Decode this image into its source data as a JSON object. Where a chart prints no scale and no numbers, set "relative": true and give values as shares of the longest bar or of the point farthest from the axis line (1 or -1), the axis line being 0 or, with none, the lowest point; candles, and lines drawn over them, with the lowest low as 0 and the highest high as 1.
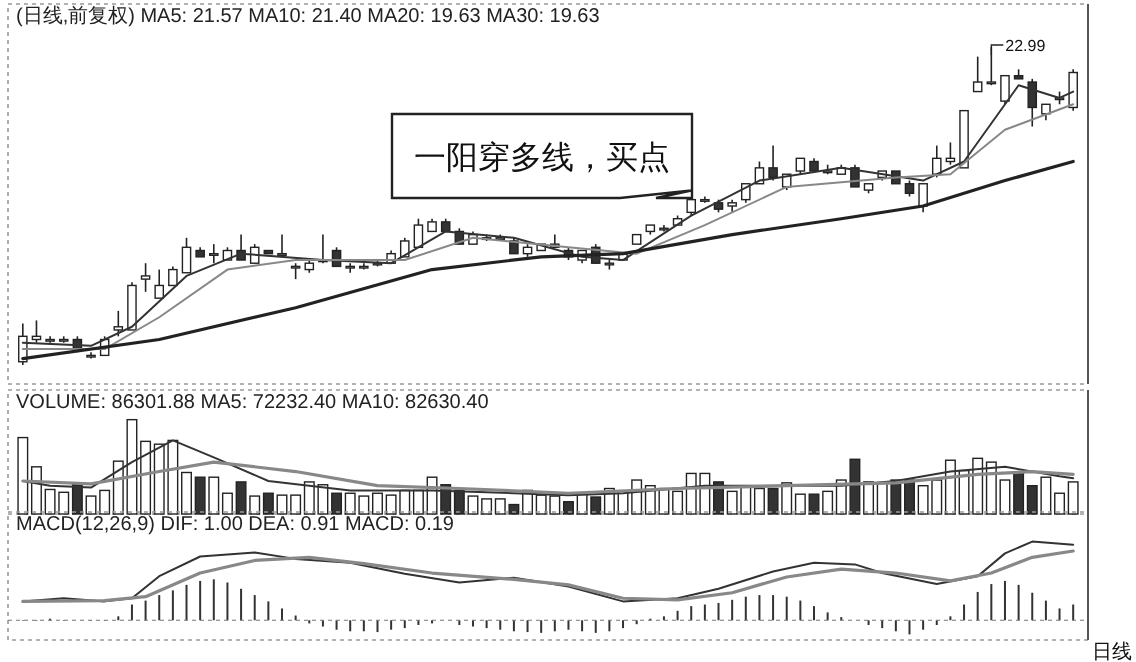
{
  "chart_data": [
    {
      "type": "candlestick",
      "relative": true,
      "title": "(日线,前复权) MA5: 21.57 MA10: 21.40 MA20: 19.63 MA30: 19.63",
      "categories": [
        null,
        null,
        null,
        null,
        null,
        null,
        null,
        null,
        null,
        null,
        null,
        null,
        null,
        null,
        null,
        null,
        null,
        null,
        null,
        null,
        null,
        null,
        null,
        null,
        null,
        null,
        null,
        null,
        null,
        null,
        null,
        null,
        null,
        null,
        null,
        null,
        null,
        null,
        null,
        null,
        null,
        null,
        null,
        null,
        null,
        null,
        null,
        null,
        null,
        null,
        null,
        null,
        null,
        null,
        null,
        null,
        null,
        null,
        null,
        null,
        null,
        null,
        null,
        null,
        null,
        null,
        null,
        null,
        null,
        null,
        null,
        null,
        null,
        null,
        null,
        null,
        null,
        null
      ],
      "ohlc": [
        [
          0.01,
          0.13,
          0,
          0.09
        ],
        [
          0.08,
          0.14,
          0.07,
          0.09
        ],
        [
          0.08,
          0.09,
          0.07,
          0.08
        ],
        [
          0.08,
          0.09,
          0.07,
          0.08
        ],
        [
          0.08,
          0.09,
          0.04,
          0.05
        ],
        [
          0.03,
          0.04,
          0.02,
          0.03
        ],
        [
          0.03,
          0.09,
          0.03,
          0.08
        ],
        [
          0.11,
          0.17,
          0.09,
          0.12
        ],
        [
          0.11,
          0.26,
          0.11,
          0.25
        ],
        [
          0.27,
          0.32,
          0.23,
          0.28
        ],
        [
          0.21,
          0.3,
          0.21,
          0.25
        ],
        [
          0.25,
          0.31,
          0.25,
          0.3
        ],
        [
          0.29,
          0.4,
          0.29,
          0.37
        ],
        [
          0.36,
          0.37,
          0.34,
          0.34
        ],
        [
          0.35,
          0.38,
          0.32,
          0.35
        ],
        [
          0.33,
          0.37,
          0.33,
          0.36
        ],
        [
          0.36,
          0.41,
          0.33,
          0.33
        ],
        [
          0.32,
          0.38,
          0.32,
          0.37
        ],
        [
          0.36,
          0.36,
          0.35,
          0.35
        ],
        [
          0.35,
          0.41,
          0.34,
          0.35
        ],
        [
          0.31,
          0.32,
          0.27,
          0.31
        ],
        [
          0.3,
          0.33,
          0.29,
          0.32
        ],
        [
          0.33,
          0.41,
          0.32,
          0.33
        ],
        [
          0.36,
          0.37,
          0.31,
          0.31
        ],
        [
          0.31,
          0.32,
          0.29,
          0.31
        ],
        [
          0.31,
          0.32,
          0.3,
          0.31
        ],
        [
          0.32,
          0.33,
          0.31,
          0.32
        ],
        [
          0.32,
          0.36,
          0.32,
          0.35
        ],
        [
          0.34,
          0.4,
          0.34,
          0.39
        ],
        [
          0.37,
          0.46,
          0.37,
          0.44
        ],
        [
          0.42,
          0.46,
          0.42,
          0.45
        ],
        [
          0.45,
          0.46,
          0.42,
          0.42
        ],
        [
          0.42,
          0.43,
          0.38,
          0.38
        ],
        [
          0.38,
          0.42,
          0.38,
          0.41
        ],
        [
          0.4,
          0.41,
          0.39,
          0.4
        ],
        [
          0.4,
          0.41,
          0.39,
          0.4
        ],
        [
          0.39,
          0.4,
          0.35,
          0.35
        ],
        [
          0.35,
          0.38,
          0.34,
          0.37
        ],
        [
          0.36,
          0.38,
          0.36,
          0.38
        ],
        [
          0.37,
          0.41,
          0.37,
          0.38
        ],
        [
          0.36,
          0.37,
          0.33,
          0.34
        ],
        [
          0.33,
          0.36,
          0.32,
          0.36
        ],
        [
          0.37,
          0.38,
          0.32,
          0.32
        ],
        [
          0.32,
          0.33,
          0.3,
          0.32
        ],
        [
          0.33,
          0.35,
          0.33,
          0.35
        ],
        [
          0.38,
          0.41,
          0.38,
          0.41
        ],
        [
          0.42,
          0.44,
          0.41,
          0.44
        ],
        [
          0.43,
          0.44,
          0.42,
          0.43
        ],
        [
          0.44,
          0.47,
          0.44,
          0.46
        ],
        [
          0.48,
          0.53,
          0.47,
          0.52
        ],
        [
          0.52,
          0.53,
          0.51,
          0.52
        ],
        [
          0.51,
          0.52,
          0.48,
          0.49
        ],
        [
          0.5,
          0.52,
          0.48,
          0.51
        ],
        [
          0.52,
          0.57,
          0.51,
          0.57
        ],
        [
          0.57,
          0.64,
          0.57,
          0.62
        ],
        [
          0.62,
          0.69,
          0.58,
          0.59
        ],
        [
          0.56,
          0.6,
          0.55,
          0.6
        ],
        [
          0.61,
          0.65,
          0.6,
          0.65
        ],
        [
          0.64,
          0.65,
          0.61,
          0.61
        ],
        [
          0.61,
          0.63,
          0.6,
          0.61
        ],
        [
          0.6,
          0.63,
          0.6,
          0.62
        ],
        [
          0.62,
          0.63,
          0.56,
          0.56
        ],
        [
          0.55,
          0.57,
          0.54,
          0.57
        ],
        [
          0.59,
          0.61,
          0.58,
          0.61
        ],
        [
          0.61,
          0.61,
          0.57,
          0.57
        ],
        [
          0.57,
          0.58,
          0.53,
          0.54
        ],
        [
          0.5,
          0.57,
          0.48,
          0.57
        ],
        [
          0.6,
          0.69,
          0.59,
          0.65
        ],
        [
          0.64,
          0.7,
          0.63,
          0.65
        ],
        [
          0.62,
          0.8,
          0.62,
          0.8
        ],
        [
          0.86,
          0.97,
          0.86,
          0.89
        ],
        [
          0.89,
          1,
          0.88,
          0.89
        ],
        [
          0.83,
          0.91,
          0.82,
          0.91
        ],
        [
          0.91,
          0.93,
          0.9,
          0.9
        ],
        [
          0.89,
          0.9,
          0.75,
          0.81
        ],
        [
          0.79,
          0.82,
          0.77,
          0.82
        ],
        [
          0.84,
          0.86,
          0.82,
          0.84
        ],
        [
          0.81,
          0.93,
          0.8,
          0.92
        ]
      ],
      "series": [
        {
          "type": "line",
          "color": "#333333",
          "values": [
            0.07,
            null,
            null,
            null,
            null,
            0.06,
            null,
            null,
            0.12,
            null,
            null,
            null,
            0.28,
            null,
            null,
            null,
            0.35,
            null,
            null,
            null,
            null,
            null,
            0.33,
            null,
            null,
            null,
            null,
            0.32,
            null,
            null,
            null,
            0.42,
            null,
            null,
            null,
            null,
            0.4,
            null,
            null,
            null,
            null,
            0.34,
            null,
            null,
            0.33,
            null,
            null,
            null,
            null,
            0.47,
            null,
            null,
            null,
            null,
            0.58,
            null,
            null,
            null,
            null,
            null,
            0.62,
            null,
            null,
            null,
            null,
            null,
            0.58,
            null,
            null,
            0.64,
            null,
            null,
            null,
            0.88,
            null,
            null,
            0.84,
            0.86
          ]
        },
        {
          "type": "line",
          "color": "#888888",
          "values": [
            0.05,
            null,
            null,
            null,
            null,
            null,
            0.05,
            null,
            null,
            null,
            0.15,
            null,
            null,
            null,
            null,
            0.3,
            null,
            null,
            null,
            null,
            0.33,
            null,
            null,
            null,
            null,
            null,
            null,
            null,
            0.33,
            null,
            null,
            null,
            null,
            0.4,
            null,
            null,
            null,
            null,
            null,
            null,
            0.37,
            null,
            null,
            null,
            null,
            0.35,
            null,
            null,
            null,
            null,
            0.44,
            null,
            null,
            null,
            null,
            null,
            0.56,
            null,
            null,
            null,
            null,
            null,
            null,
            null,
            0.59,
            null,
            null,
            null,
            0.6,
            null,
            null,
            null,
            0.74,
            null,
            null,
            null,
            null,
            0.82
          ]
        },
        {
          "type": "line",
          "color": "#222222",
          "values": [
            0.02,
            null,
            null,
            null,
            null,
            null,
            null,
            null,
            null,
            null,
            0.08,
            null,
            null,
            null,
            null,
            null,
            null,
            null,
            null,
            null,
            0.18,
            null,
            null,
            null,
            null,
            null,
            null,
            null,
            null,
            null,
            0.3,
            null,
            null,
            null,
            null,
            null,
            null,
            null,
            0.34,
            null,
            null,
            null,
            null,
            null,
            0.35,
            null,
            null,
            null,
            null,
            null,
            null,
            null,
            0.41,
            null,
            null,
            null,
            null,
            null,
            null,
            null,
            0.46,
            null,
            null,
            null,
            null,
            null,
            0.5,
            null,
            null,
            null,
            null,
            null,
            0.58,
            null,
            null,
            null,
            null,
            0.64
          ]
        }
      ],
      "annotations": [
        "一阳穿多线，买点",
        "22.99"
      ]
    },
    {
      "type": "bar",
      "relative": true,
      "title": "VOLUME: 86301.88 MA5: 72232.40 MA10: 82630.40",
      "categories": [
        null,
        null,
        null,
        null,
        null,
        null,
        null,
        null,
        null,
        null,
        null,
        null,
        null,
        null,
        null,
        null,
        null,
        null,
        null,
        null,
        null,
        null,
        null,
        null,
        null,
        null,
        null,
        null,
        null,
        null,
        null,
        null,
        null,
        null,
        null,
        null,
        null,
        null,
        null,
        null,
        null,
        null,
        null,
        null,
        null,
        null,
        null,
        null,
        null,
        null,
        null,
        null,
        null,
        null,
        null,
        null,
        null,
        null,
        null,
        null,
        null,
        null,
        null,
        null,
        null,
        null,
        null,
        null,
        null,
        null,
        null,
        null,
        null,
        null,
        null,
        null,
        null,
        null
      ],
      "series": [
        {
          "type": "bar",
          "values": [
            0.81,
            0.5,
            0.26,
            0.23,
            0.31,
            0.19,
            0.25,
            0.56,
            1,
            0.77,
            0.74,
            0.78,
            0.44,
            0.39,
            0.39,
            0.22,
            0.34,
            0.19,
            0.22,
            0.2,
            0.2,
            0.34,
            0.31,
            0.22,
            0.22,
            0.19,
            0.22,
            0.2,
            0.25,
            0.25,
            0.39,
            0.31,
            0.25,
            0.19,
            0.16,
            0.16,
            0.1,
            0.25,
            0.2,
            0.19,
            0.13,
            0.21,
            0.18,
            0.27,
            0.24,
            0.36,
            0.3,
            0.27,
            0.24,
            0.43,
            0.43,
            0.34,
            0.24,
            0.3,
            0.27,
            0.27,
            0.33,
            0.21,
            0.21,
            0.24,
            0.36,
            0.58,
            0.34,
            0.33,
            0.36,
            0.36,
            0.3,
            0.36,
            0.57,
            0.46,
            0.59,
            0.55,
            0.36,
            0.43,
            0.3,
            0.39,
            0.22,
            0.34
          ],
          "colors": [
            "#ffffff",
            "#ffffff",
            "#ffffff",
            "#ffffff",
            "#333333",
            "#ffffff",
            "#ffffff",
            "#ffffff",
            "#ffffff",
            "#ffffff",
            "#ffffff",
            "#ffffff",
            "#ffffff",
            "#333333",
            "#ffffff",
            "#ffffff",
            "#333333",
            "#ffffff",
            "#333333",
            "#ffffff",
            "#ffffff",
            "#ffffff",
            "#ffffff",
            "#333333",
            "#ffffff",
            "#ffffff",
            "#ffffff",
            "#ffffff",
            "#ffffff",
            "#ffffff",
            "#ffffff",
            "#333333",
            "#333333",
            "#ffffff",
            "#ffffff",
            "#ffffff",
            "#333333",
            "#ffffff",
            "#ffffff",
            "#ffffff",
            "#333333",
            "#ffffff",
            "#333333",
            "#ffffff",
            "#ffffff",
            "#ffffff",
            "#ffffff",
            "#ffffff",
            "#ffffff",
            "#ffffff",
            "#ffffff",
            "#333333",
            "#ffffff",
            "#ffffff",
            "#ffffff",
            "#333333",
            "#ffffff",
            "#ffffff",
            "#333333",
            "#ffffff",
            "#ffffff",
            "#333333",
            "#ffffff",
            "#ffffff",
            "#333333",
            "#333333",
            "#ffffff",
            "#ffffff",
            "#ffffff",
            "#ffffff",
            "#ffffff",
            "#ffffff",
            "#ffffff",
            "#333333",
            "#333333",
            "#ffffff",
            "#ffffff",
            "#ffffff"
          ]
        },
        {
          "type": "line",
          "color": "#333333",
          "values": [
            0.35,
            null,
            0.3,
            null,
            null,
            0.28,
            null,
            null,
            0.55,
            null,
            null,
            0.78,
            null,
            null,
            0.6,
            null,
            null,
            null,
            0.35,
            null,
            null,
            null,
            null,
            null,
            0.25,
            null,
            null,
            null,
            null,
            null,
            0.25,
            null,
            null,
            null,
            null,
            null,
            0.22,
            null,
            null,
            null,
            0.2,
            null,
            null,
            null,
            0.22,
            null,
            null,
            null,
            null,
            null,
            0.3,
            null,
            null,
            null,
            null,
            null,
            0.3,
            null,
            null,
            null,
            0.3,
            null,
            null,
            null,
            0.35,
            null,
            null,
            null,
            0.45,
            null,
            null,
            null,
            0.5,
            null,
            null,
            null,
            0.4,
            0.38
          ]
        },
        {
          "type": "line",
          "color": "#888888",
          "values": [
            0.35,
            null,
            null,
            null,
            null,
            0.32,
            null,
            null,
            null,
            null,
            0.45,
            null,
            null,
            null,
            0.55,
            null,
            null,
            null,
            null,
            null,
            0.45,
            null,
            null,
            null,
            null,
            null,
            0.3,
            null,
            null,
            null,
            null,
            null,
            0.27,
            null,
            null,
            null,
            null,
            null,
            null,
            null,
            0.22,
            null,
            null,
            null,
            null,
            null,
            null,
            null,
            0.27,
            null,
            null,
            null,
            null,
            null,
            null,
            null,
            0.3,
            null,
            null,
            null,
            null,
            null,
            null,
            null,
            0.33,
            null,
            null,
            null,
            null,
            null,
            0.42,
            null,
            null,
            null,
            0.45,
            null,
            null,
            0.42
          ]
        }
      ]
    },
    {
      "type": "bar",
      "relative": true,
      "title": "MACD(12,26,9) DIF: 1.00 DEA: 0.91 MACD: 0.19",
      "categories": [
        null,
        null,
        null,
        null,
        null,
        null,
        null,
        null,
        null,
        null,
        null,
        null,
        null,
        null,
        null,
        null,
        null,
        null,
        null,
        null,
        null,
        null,
        null,
        null,
        null,
        null,
        null,
        null,
        null,
        null,
        null,
        null,
        null,
        null,
        null,
        null,
        null,
        null,
        null,
        null,
        null,
        null,
        null,
        null,
        null,
        null,
        null,
        null,
        null,
        null,
        null,
        null,
        null,
        null,
        null,
        null,
        null,
        null,
        null,
        null,
        null,
        null,
        null,
        null,
        null,
        null,
        null,
        null,
        null,
        null,
        null,
        null,
        null,
        null,
        null,
        null,
        null,
        null
      ],
      "series": [
        {
          "type": "bar",
          "color": "#333333",
          "values": [
            0,
            0,
            0.02,
            0,
            null,
            0,
            0,
            0.05,
            0.2,
            0.25,
            0.32,
            0.38,
            0.45,
            0.5,
            0.52,
            0.48,
            0.4,
            0.32,
            0.24,
            0.15,
            0.06,
            -0.04,
            -0.08,
            -0.12,
            -0.14,
            -0.14,
            -0.15,
            -0.12,
            -0.1,
            -0.06,
            -0.04,
            null,
            -0.06,
            -0.08,
            -0.1,
            -0.12,
            -0.14,
            -0.15,
            -0.16,
            -0.14,
            -0.12,
            -0.14,
            -0.16,
            -0.14,
            -0.1,
            -0.05,
            0.02,
            0.05,
            0.12,
            0.18,
            0.2,
            0.22,
            0.26,
            0.3,
            0.32,
            0.32,
            0.3,
            0.25,
            0.18,
            0.1,
            0.04,
            null,
            -0.06,
            -0.1,
            -0.14,
            -0.18,
            -0.12,
            -0.06,
            0.05,
            0.2,
            0.36,
            0.46,
            0.5,
            0.45,
            0.35,
            0.25,
            0.15,
            0.2
          ]
        },
        {
          "type": "line",
          "color": "#333333",
          "values": [
            0.24,
            null,
            null,
            0.28,
            null,
            null,
            0.24,
            null,
            0.28,
            null,
            0.56,
            null,
            null,
            0.81,
            null,
            null,
            null,
            0.86,
            null,
            null,
            0.78,
            null,
            null,
            null,
            0.73,
            null,
            null,
            null,
            0.59,
            null,
            null,
            null,
            0.48,
            null,
            null,
            null,
            0.54,
            null,
            null,
            null,
            0.43,
            null,
            null,
            null,
            0.24,
            null,
            null,
            null,
            0.28,
            null,
            null,
            0.4,
            null,
            null,
            null,
            0.62,
            null,
            null,
            0.73,
            null,
            null,
            0.71,
            null,
            0.6,
            null,
            null,
            null,
            0.46,
            null,
            null,
            0.56,
            null,
            0.85,
            null,
            1.0,
            null,
            null,
            0.96
          ]
        },
        {
          "type": "line",
          "color": "#888888",
          "values": [
            0.24,
            null,
            null,
            null,
            null,
            null,
            0.25,
            null,
            null,
            0.3,
            null,
            null,
            null,
            0.6,
            null,
            null,
            null,
            0.76,
            null,
            null,
            null,
            0.8,
            null,
            null,
            null,
            0.72,
            null,
            null,
            null,
            null,
            0.6,
            null,
            null,
            null,
            null,
            null,
            0.52,
            null,
            null,
            null,
            0.45,
            null,
            null,
            null,
            0.28,
            null,
            null,
            null,
            0.26,
            null,
            null,
            null,
            0.35,
            null,
            null,
            null,
            0.55,
            null,
            null,
            null,
            0.65,
            null,
            null,
            null,
            0.6,
            null,
            null,
            null,
            0.5,
            null,
            null,
            0.6,
            null,
            null,
            0.8,
            null,
            null,
            0.88
          ]
        }
      ],
      "ref_lines": [
        {
          "axis": "y",
          "value": 0,
          "color": "#777777",
          "line_style": "dashed"
        }
      ],
      "annotations": [
        "日线"
      ]
    }
  ]
}
